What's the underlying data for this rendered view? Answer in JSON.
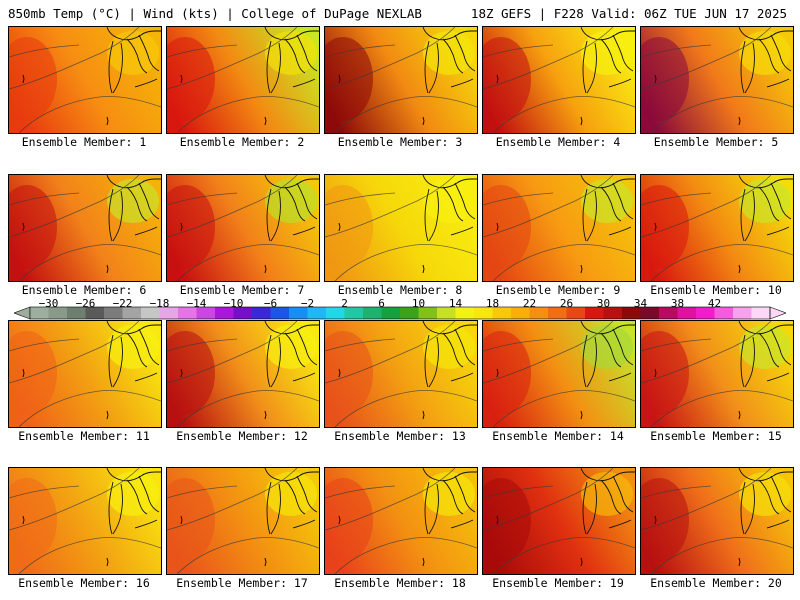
{
  "header": {
    "left": "850mb Temp (°C) | Wind (kts) | College of DuPage NEXLAB",
    "right": "18Z GEFS | F228 Valid: 06Z TUE JUN 17 2025"
  },
  "members": [
    {
      "label": "Ensemble Member: 1",
      "west": "#e83a0f",
      "mid": "#f78e12",
      "east": "#f4b408",
      "great_lakes": "#f8c80a"
    },
    {
      "label": "Ensemble Member: 2",
      "west": "#d8180e",
      "mid": "#f38a12",
      "east": "#c8e624",
      "great_lakes": "#f2e10a"
    },
    {
      "label": "Ensemble Member: 3",
      "west": "#8e0a0a",
      "mid": "#f28a12",
      "east": "#f5d80a",
      "great_lakes": "#f4e60a"
    },
    {
      "label": "Ensemble Member: 4",
      "west": "#c21010",
      "mid": "#f7a10f",
      "east": "#f8ef10",
      "great_lakes": "#f8ef10"
    },
    {
      "label": "Ensemble Member: 5",
      "west": "#8a0a3a",
      "mid": "#f1791a",
      "east": "#f5c80a",
      "great_lakes": "#f6dc0a"
    },
    {
      "label": "Ensemble Member: 6",
      "west": "#c41010",
      "mid": "#f2821a",
      "east": "#f6b20a",
      "great_lakes": "#c9e32a"
    },
    {
      "label": "Ensemble Member: 7",
      "west": "#c81010",
      "mid": "#f2801a",
      "east": "#f5c80a",
      "great_lakes": "#b9e02a"
    },
    {
      "label": "Ensemble Member: 8",
      "west": "#f09812",
      "mid": "#f6d80a",
      "east": "#f8ee10",
      "great_lakes": "#f8ef10"
    },
    {
      "label": "Ensemble Member: 9",
      "west": "#e44512",
      "mid": "#f79a12",
      "east": "#f6c40a",
      "great_lakes": "#c9e52a"
    },
    {
      "label": "Ensemble Member: 10",
      "west": "#d8180e",
      "mid": "#f38a12",
      "east": "#f5dc0a",
      "great_lakes": "#c9e52a"
    },
    {
      "label": "Ensemble Member: 11",
      "west": "#f06018",
      "mid": "#f2a012",
      "east": "#f8ea10",
      "great_lakes": "#f8ef10"
    },
    {
      "label": "Ensemble Member: 12",
      "west": "#b81010",
      "mid": "#f2901a",
      "east": "#f8ea10",
      "great_lakes": "#f8ef10"
    },
    {
      "label": "Ensemble Member: 13",
      "west": "#e8521a",
      "mid": "#f3a012",
      "east": "#f6d80a",
      "great_lakes": "#f6e60a"
    },
    {
      "label": "Ensemble Member: 14",
      "west": "#d82010",
      "mid": "#f39012",
      "east": "#c6e22a",
      "great_lakes": "#a8d838"
    },
    {
      "label": "Ensemble Member: 15",
      "west": "#c81414",
      "mid": "#f2901a",
      "east": "#f5d80a",
      "great_lakes": "#c9e52a"
    },
    {
      "label": "Ensemble Member: 16",
      "west": "#f06a18",
      "mid": "#f3a412",
      "east": "#f8e410",
      "great_lakes": "#f8ef10"
    },
    {
      "label": "Ensemble Member: 17",
      "west": "#e8541a",
      "mid": "#f39012",
      "east": "#f5c80a",
      "great_lakes": "#f6e60a"
    },
    {
      "label": "Ensemble Member: 18",
      "west": "#e8421a",
      "mid": "#f39012",
      "east": "#f5c00a",
      "great_lakes": "#f6e60a"
    },
    {
      "label": "Ensemble Member: 19",
      "west": "#a80a0a",
      "mid": "#e03010",
      "east": "#f39012",
      "great_lakes": "#f5b80a"
    },
    {
      "label": "Ensemble Member: 20",
      "west": "#b81010",
      "mid": "#f0701a",
      "east": "#f6c40a",
      "great_lakes": "#f6e00a"
    }
  ],
  "colorbar": {
    "colors": [
      "#9eae9e",
      "#8a9a8a",
      "#6f7f6f",
      "#5a5a5a",
      "#7c7c7c",
      "#a4a4a4",
      "#c6c6c6",
      "#e6a6e6",
      "#e474e8",
      "#c848e0",
      "#a818d8",
      "#7610c8",
      "#3a28d8",
      "#1c56e6",
      "#1a8ef0",
      "#1fb8f2",
      "#20d8e8",
      "#20c8a4",
      "#20b070",
      "#18a03c",
      "#3aa21c",
      "#82c01c",
      "#c8e024",
      "#f2f214",
      "#f8e610",
      "#f8c80a",
      "#f7b008",
      "#f49010",
      "#f06e18",
      "#e84818",
      "#d8180e",
      "#b81010",
      "#8a0a0a",
      "#780a2a",
      "#b80a5e",
      "#e010a0",
      "#f21cc8",
      "#f45ce0",
      "#f8a2ee",
      "#fcd8f6"
    ],
    "tick_labels": [
      "−30",
      "−26",
      "−22",
      "−18",
      "−14",
      "−10",
      "−6",
      "−2",
      "2",
      "6",
      "10",
      "14",
      "18",
      "22",
      "26",
      "30",
      "34",
      "38",
      "42"
    ]
  }
}
